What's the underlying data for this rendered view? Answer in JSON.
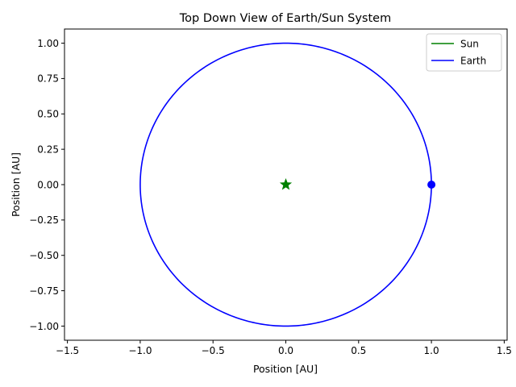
{
  "chart_data": {
    "type": "line",
    "title": "Top Down View of Earth/Sun System",
    "xlabel": "Position [AU]",
    "ylabel": "Position [AU]",
    "xlim": [
      -1.52,
      1.52
    ],
    "ylim": [
      -1.1,
      1.1
    ],
    "xticks": [
      -1.5,
      -1.0,
      -0.5,
      0.0,
      0.5,
      1.0,
      1.5
    ],
    "xtick_labels": [
      "−1.5",
      "−1.0",
      "−0.5",
      "0.0",
      "0.5",
      "1.0",
      "1.5"
    ],
    "yticks": [
      1.0,
      0.75,
      0.5,
      0.25,
      0.0,
      -0.25,
      -0.5,
      -0.75,
      -1.0
    ],
    "ytick_labels": [
      "1.00",
      "0.75",
      "0.50",
      "0.25",
      "0.00",
      "−0.25",
      "−0.50",
      "−0.75",
      "−1.00"
    ],
    "grid": false,
    "legend_position": "top-right",
    "series": [
      {
        "name": "Sun",
        "color": "#008000",
        "path": [
          [
            0.0,
            0.0
          ]
        ],
        "marker": "star",
        "marker_position": [
          0.0,
          0.0
        ]
      },
      {
        "name": "Earth",
        "color": "#0000ff",
        "shape": "circle",
        "center": [
          0.0,
          0.0
        ],
        "radius": 1.0,
        "marker": "circle",
        "marker_position": [
          1.0,
          0.0
        ]
      }
    ]
  }
}
